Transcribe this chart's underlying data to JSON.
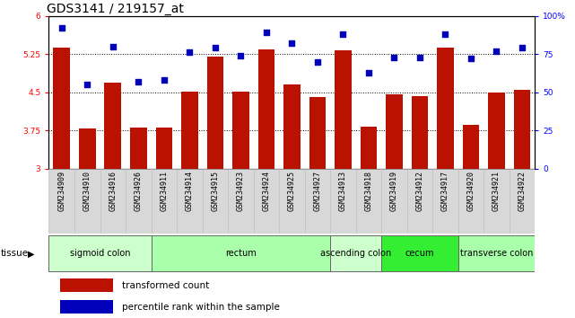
{
  "title": "GDS3141 / 219157_at",
  "samples": [
    "GSM234909",
    "GSM234910",
    "GSM234916",
    "GSM234926",
    "GSM234911",
    "GSM234914",
    "GSM234915",
    "GSM234923",
    "GSM234924",
    "GSM234925",
    "GSM234927",
    "GSM234913",
    "GSM234918",
    "GSM234919",
    "GSM234912",
    "GSM234917",
    "GSM234920",
    "GSM234921",
    "GSM234922"
  ],
  "bar_values": [
    5.38,
    3.78,
    4.68,
    3.8,
    3.8,
    4.52,
    5.2,
    4.52,
    5.35,
    4.65,
    4.4,
    5.32,
    3.83,
    4.45,
    4.42,
    5.38,
    3.85,
    4.5,
    4.55
  ],
  "dot_values": [
    92,
    55,
    80,
    57,
    58,
    76,
    79,
    74,
    89,
    82,
    70,
    88,
    63,
    73,
    73,
    88,
    72,
    77,
    79
  ],
  "ylim_left": [
    3.0,
    6.0
  ],
  "ylim_right": [
    0,
    100
  ],
  "yticks_left": [
    3.0,
    3.75,
    4.5,
    5.25,
    6.0
  ],
  "ytick_labels_left": [
    "3",
    "3.75",
    "4.5",
    "5.25",
    "6"
  ],
  "yticks_right": [
    0,
    25,
    50,
    75,
    100
  ],
  "ytick_labels_right": [
    "0",
    "25",
    "50",
    "75",
    "100%"
  ],
  "bar_color": "#bb1100",
  "dot_color": "#0000bb",
  "tissue_groups": [
    {
      "label": "sigmoid colon",
      "start": 0,
      "end": 4,
      "color": "#ccffcc"
    },
    {
      "label": "rectum",
      "start": 4,
      "end": 11,
      "color": "#aaffaa"
    },
    {
      "label": "ascending colon",
      "start": 11,
      "end": 13,
      "color": "#ccffcc"
    },
    {
      "label": "cecum",
      "start": 13,
      "end": 16,
      "color": "#33ee33"
    },
    {
      "label": "transverse colon",
      "start": 16,
      "end": 19,
      "color": "#aaffaa"
    }
  ],
  "tissue_label": "tissue",
  "legend_bar_label": "transformed count",
  "legend_dot_label": "percentile rank within the sample",
  "title_fontsize": 10,
  "tick_fontsize": 6.5,
  "sample_fontsize": 6,
  "tissue_fontsize": 7,
  "legend_fontsize": 7.5
}
